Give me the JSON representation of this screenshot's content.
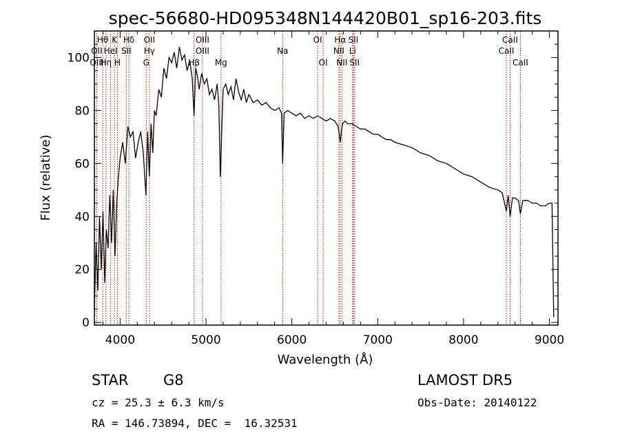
{
  "chart_data": {
    "type": "line",
    "title": "spec-56680-HD095348N144420B01_sp16-203.fits",
    "xlabel": "Wavelength (Å)",
    "ylabel": "Flux (relative)",
    "xlim": [
      3700,
      9100
    ],
    "ylim": [
      -1,
      110
    ],
    "x_ticks": [
      4000,
      5000,
      6000,
      7000,
      8000,
      9000
    ],
    "y_ticks": [
      0,
      20,
      40,
      60,
      80,
      100
    ],
    "grid": false,
    "legend": "none",
    "colors": {
      "spectrum": "#000000",
      "lines": "#cc0000"
    },
    "series": [
      {
        "x": [
          3700,
          3720,
          3740,
          3760,
          3780,
          3800,
          3820,
          3840,
          3860,
          3880,
          3900,
          3920,
          3940,
          3960,
          3980,
          4000,
          4030,
          4060,
          4090,
          4120,
          4150,
          4180,
          4210,
          4240,
          4270,
          4300,
          4320,
          4340,
          4360,
          4380,
          4400,
          4420,
          4450,
          4480,
          4510,
          4540,
          4570,
          4600,
          4630,
          4660,
          4690,
          4720,
          4750,
          4780,
          4810,
          4840,
          4861,
          4880,
          4900,
          4920,
          4950,
          4980,
          5010,
          5040,
          5070,
          5100,
          5130,
          5150,
          5167,
          5173,
          5183,
          5200,
          5230,
          5260,
          5290,
          5320,
          5350,
          5380,
          5410,
          5440,
          5470,
          5500,
          5550,
          5600,
          5650,
          5700,
          5750,
          5800,
          5850,
          5880,
          5893,
          5910,
          5950,
          6000,
          6050,
          6100,
          6150,
          6200,
          6250,
          6300,
          6350,
          6400,
          6450,
          6500,
          6540,
          6563,
          6590,
          6620,
          6650,
          6700,
          6750,
          6800,
          6850,
          6900,
          6950,
          7000,
          7050,
          7100,
          7150,
          7200,
          7300,
          7400,
          7500,
          7600,
          7700,
          7800,
          7900,
          8000,
          8100,
          8200,
          8300,
          8400,
          8450,
          8498,
          8520,
          8542,
          8570,
          8600,
          8640,
          8662,
          8690,
          8750,
          8800,
          8850,
          8900,
          8950,
          9000,
          9030,
          9050
        ],
        "y": [
          5,
          30,
          12,
          40,
          20,
          42,
          15,
          35,
          28,
          48,
          30,
          50,
          25,
          45,
          55,
          62,
          68,
          60,
          74,
          70,
          72,
          62,
          68,
          72,
          64,
          48,
          72,
          55,
          75,
          64,
          80,
          78,
          88,
          85,
          96,
          92,
          100,
          98,
          102,
          96,
          104,
          99,
          101,
          95,
          99,
          92,
          78,
          96,
          93,
          88,
          94,
          90,
          92,
          86,
          88,
          84,
          90,
          82,
          55,
          60,
          72,
          88,
          90,
          86,
          89,
          84,
          92,
          87,
          84,
          88,
          83,
          86,
          83,
          84,
          82,
          83,
          81,
          80,
          81,
          79,
          60,
          79,
          80,
          79,
          78,
          79,
          77,
          78,
          77,
          78,
          77,
          76,
          77,
          76,
          74,
          68,
          75,
          76,
          75,
          75,
          74,
          73,
          73,
          72,
          71,
          71,
          70,
          69,
          69,
          68,
          67,
          66,
          64,
          63,
          61,
          60,
          58,
          56,
          55,
          53,
          51,
          50,
          49,
          42,
          48,
          40,
          47,
          47,
          46,
          41,
          46,
          46,
          45,
          45,
          44,
          44,
          45,
          45,
          2
        ]
      }
    ],
    "spectral_lines": [
      {
        "label": "Hθ",
        "wavelength": 3797,
        "row": 0
      },
      {
        "label": "K",
        "wavelength": 3934,
        "row": 0
      },
      {
        "label": "Hδ",
        "wavelength": 4102,
        "row": 0
      },
      {
        "label": "OII",
        "wavelength": 4341,
        "row": 0
      },
      {
        "label": "OIII",
        "wavelength": 4959,
        "row": 0
      },
      {
        "label": "OI",
        "wavelength": 6300,
        "row": 0
      },
      {
        "label": "Hα",
        "wavelength": 6563,
        "row": 0
      },
      {
        "label": "SII",
        "wavelength": 6717,
        "row": 0
      },
      {
        "label": "CaII",
        "wavelength": 8542,
        "row": 0
      },
      {
        "label": "OII",
        "wavelength": 3727,
        "row": 1
      },
      {
        "label": "HeI",
        "wavelength": 3889,
        "row": 1
      },
      {
        "label": "SII",
        "wavelength": 4072,
        "row": 1
      },
      {
        "label": "Hγ",
        "wavelength": 4340,
        "row": 1
      },
      {
        "label": "OIII",
        "wavelength": 4959,
        "row": 1
      },
      {
        "label": "Na",
        "wavelength": 5893,
        "row": 1
      },
      {
        "label": "NII",
        "wavelength": 6548,
        "row": 1
      },
      {
        "label": "Li",
        "wavelength": 6708,
        "row": 1
      },
      {
        "label": "CaII",
        "wavelength": 8498,
        "row": 1
      },
      {
        "label": "OIII",
        "wavelength": 3727,
        "row": 2
      },
      {
        "label": "Hη",
        "wavelength": 3835,
        "row": 2
      },
      {
        "label": "H",
        "wavelength": 3968,
        "row": 2
      },
      {
        "label": "G",
        "wavelength": 4304,
        "row": 2
      },
      {
        "label": "Hβ",
        "wavelength": 4861,
        "row": 2
      },
      {
        "label": "Mg",
        "wavelength": 5175,
        "row": 2
      },
      {
        "label": "OI",
        "wavelength": 6364,
        "row": 2
      },
      {
        "label": "NII",
        "wavelength": 6583,
        "row": 2
      },
      {
        "label": "SII",
        "wavelength": 6731,
        "row": 2
      },
      {
        "label": "CaII",
        "wavelength": 8662,
        "row": 2
      }
    ]
  },
  "info": {
    "object_class": "STAR",
    "subclass": "G8",
    "survey": "LAMOST DR5",
    "cz": "cz = 25.3 ± 6.3 km/s",
    "obs_date": "Obs-Date: 20140122",
    "coords": "RA = 146.73894, DEC =  16.32531"
  }
}
